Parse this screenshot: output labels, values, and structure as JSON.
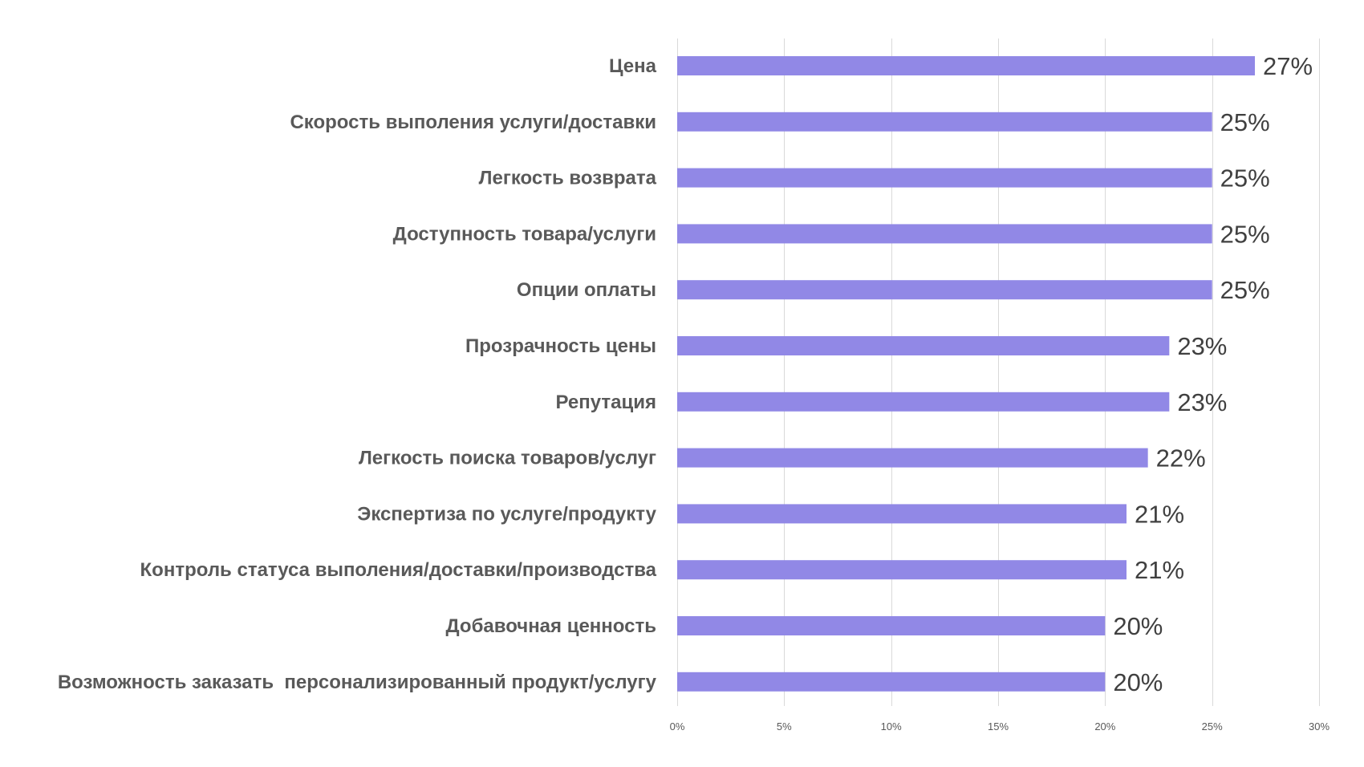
{
  "chart_data": {
    "type": "bar",
    "orientation": "horizontal",
    "title": "",
    "xlabel": "",
    "ylabel": "",
    "categories": [
      "Цена",
      "Скорость выполения услуги/доставки",
      "Легкость возврата",
      "Доступность товара/услуги",
      "Опции оплаты",
      "Прозрачность цены",
      "Репутация",
      "Легкость поиска товаров/услуг",
      "Экспертиза по услуге/продукту",
      "Контроль статуса выполения/доставки/производства",
      "Добавочная ценность",
      "Возможность заказать  персонализированный продукт/услугу"
    ],
    "values": [
      27,
      25,
      25,
      25,
      25,
      23,
      23,
      22,
      21,
      21,
      20,
      20
    ],
    "value_labels": [
      "27%",
      "25%",
      "25%",
      "25%",
      "25%",
      "23%",
      "23%",
      "22%",
      "21%",
      "21%",
      "20%",
      "20%"
    ],
    "xlim": [
      0,
      30
    ],
    "x_ticks": [
      0,
      5,
      10,
      15,
      20,
      25,
      30
    ],
    "x_tick_labels": [
      "0%",
      "5%",
      "10%",
      "15%",
      "20%",
      "25%",
      "30%"
    ],
    "grid": "vertical",
    "legend": "none",
    "bar_color": "#9188e6"
  }
}
